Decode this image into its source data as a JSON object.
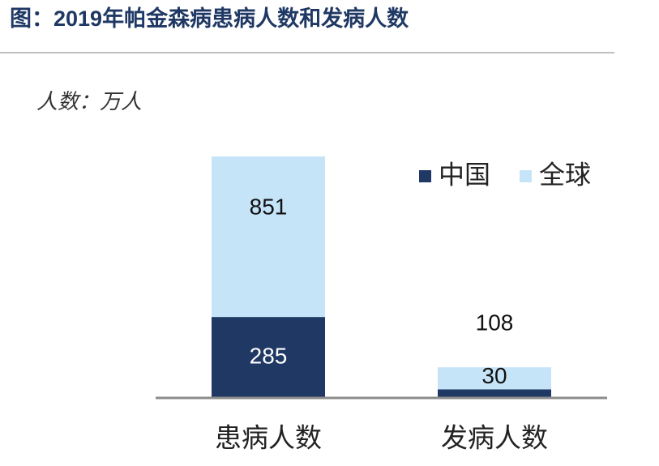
{
  "chart_data": {
    "type": "bar",
    "title": "图：2019年帕金森病患病人数和发病人数",
    "unit_label": "人数：万人",
    "categories": [
      "患病人数",
      "发病人数"
    ],
    "series": [
      {
        "name": "全球",
        "color": "#c5e4f8",
        "values": [
          851,
          108
        ]
      },
      {
        "name": "中国",
        "color": "#203864",
        "values": [
          285,
          30
        ]
      }
    ],
    "legend": "top-right"
  }
}
